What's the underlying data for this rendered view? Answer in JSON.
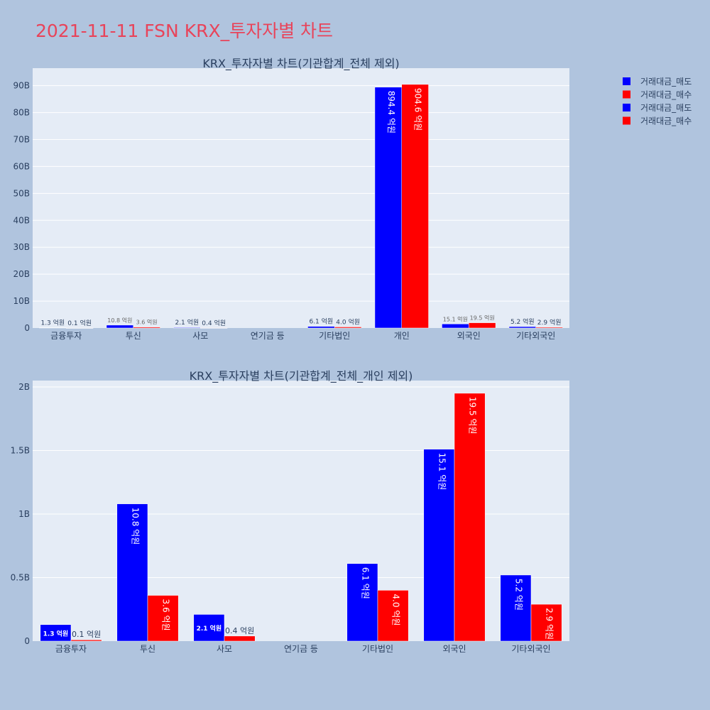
{
  "page_title": "2021-11-11 FSN KRX_투자자별 차트",
  "colors": {
    "sell": "#0000ff",
    "buy": "#ff0000",
    "plot_bg": "#e5ecf6",
    "page_bg": "#b0c4de"
  },
  "legend": [
    {
      "name": "거래대금_매도",
      "color": "#0000ff"
    },
    {
      "name": "거래대금_매수",
      "color": "#ff0000"
    },
    {
      "name": "거래대금_매도",
      "color": "#0000ff"
    },
    {
      "name": "거래대금_매수",
      "color": "#ff0000"
    }
  ],
  "chart_data": [
    {
      "type": "bar",
      "title": "KRX_투자자별 차트(기관합계_전체 제외)",
      "categories": [
        "금융투자",
        "투신",
        "사모",
        "연기금 등",
        "기타법인",
        "개인",
        "외국인",
        "기타외국인"
      ],
      "series": [
        {
          "name": "거래대금_매도",
          "values": [
            0.13,
            1.08,
            0.21,
            0,
            0.61,
            89.44,
            1.51,
            0.52
          ],
          "labels": [
            "1.3 억원",
            "10.8 억원",
            "2.1 억원",
            "",
            "6.1 억원",
            "894.4 억원",
            "15.1 억원",
            "5.2 억원"
          ]
        },
        {
          "name": "거래대금_매수",
          "values": [
            0.01,
            0.36,
            0.04,
            0,
            0.4,
            90.46,
            1.95,
            0.29
          ],
          "labels": [
            "0.1 억원",
            "3.6 억원",
            "0.4 억원",
            "",
            "4.0 억원",
            "904.6 억원",
            "19.5 억원",
            "2.9 억원"
          ]
        }
      ],
      "yticks": [
        0,
        10,
        20,
        30,
        40,
        50,
        60,
        70,
        80,
        90
      ],
      "ytick_labels": [
        "0",
        "10B",
        "20B",
        "30B",
        "40B",
        "50B",
        "60B",
        "70B",
        "80B",
        "90B"
      ],
      "ylim": [
        0,
        96.5
      ],
      "grid": true
    },
    {
      "type": "bar",
      "title": "KRX_투자자별 차트(기관합계_전체_개인 제외)",
      "categories": [
        "금융투자",
        "투신",
        "사모",
        "연기금 등",
        "기타법인",
        "외국인",
        "기타외국인"
      ],
      "series": [
        {
          "name": "거래대금_매도",
          "values": [
            0.13,
            1.08,
            0.21,
            0,
            0.61,
            1.51,
            0.52
          ],
          "labels": [
            "1.3 억원",
            "10.8 억원",
            "2.1 억원",
            "",
            "6.1 억원",
            "15.1 억원",
            "5.2 억원"
          ]
        },
        {
          "name": "거래대금_매수",
          "values": [
            0.01,
            0.36,
            0.04,
            0,
            0.4,
            1.95,
            0.29
          ],
          "labels": [
            "0.1 억원",
            "3.6 억원",
            "0.4 억원",
            "",
            "4.0 억원",
            "19.5 억원",
            "2.9 억원"
          ]
        }
      ],
      "yticks": [
        0,
        0.5,
        1,
        1.5,
        2
      ],
      "ytick_labels": [
        "0",
        "0.5B",
        "1B",
        "1.5B",
        "2B"
      ],
      "ylim": [
        0,
        2.05
      ],
      "grid": true
    }
  ]
}
